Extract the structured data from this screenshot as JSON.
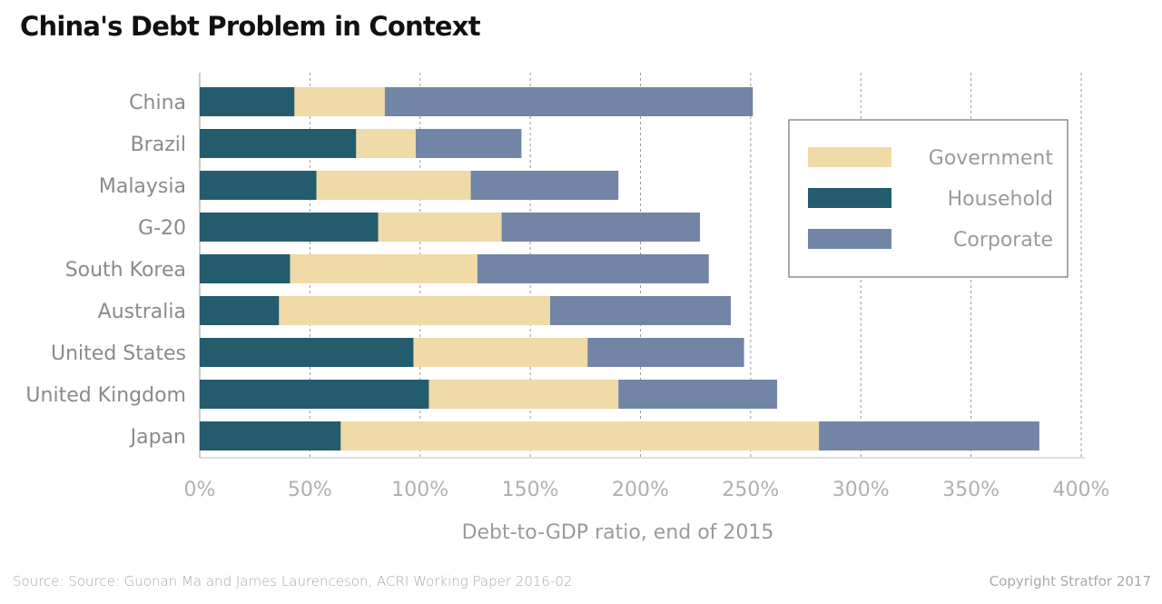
{
  "title": "China's Debt Problem in Context",
  "source": "Source: Source: Guonan Ma and James Laurenceson, ACRI Working Paper 2016-02",
  "copyright": "Copyright Stratfor 2017",
  "colors": {
    "Household": "#245c6e",
    "Government": "#efdaa8",
    "Corporate": "#7285a6",
    "grid": "#9a9a9a",
    "axis_text": "#b0b0b0",
    "category_text": "#8a8a8a",
    "legend_text": "#9a9a9a"
  },
  "chart_data": {
    "type": "bar",
    "orientation": "horizontal",
    "stacked": true,
    "xlabel": "Debt-to-GDP ratio, end of 2015",
    "ylabel": "",
    "xlim": [
      0,
      400
    ],
    "xticks": [
      "0%",
      "50%",
      "100%",
      "150%",
      "200%",
      "250%",
      "300%",
      "350%",
      "400%"
    ],
    "grid": true,
    "legend_position": "top-right",
    "legend_order": [
      "Government",
      "Household",
      "Corporate"
    ],
    "categories": [
      "China",
      "Brazil",
      "Malaysia",
      "G-20",
      "South Korea",
      "Australia",
      "United States",
      "United Kingdom",
      "Japan"
    ],
    "series": [
      {
        "name": "Household",
        "values": [
          43,
          71,
          53,
          81,
          41,
          36,
          97,
          104,
          64
        ]
      },
      {
        "name": "Government",
        "values": [
          41,
          27,
          70,
          56,
          85,
          123,
          79,
          86,
          217
        ]
      },
      {
        "name": "Corporate",
        "values": [
          167,
          48,
          67,
          90,
          105,
          82,
          71,
          72,
          100
        ]
      }
    ]
  }
}
